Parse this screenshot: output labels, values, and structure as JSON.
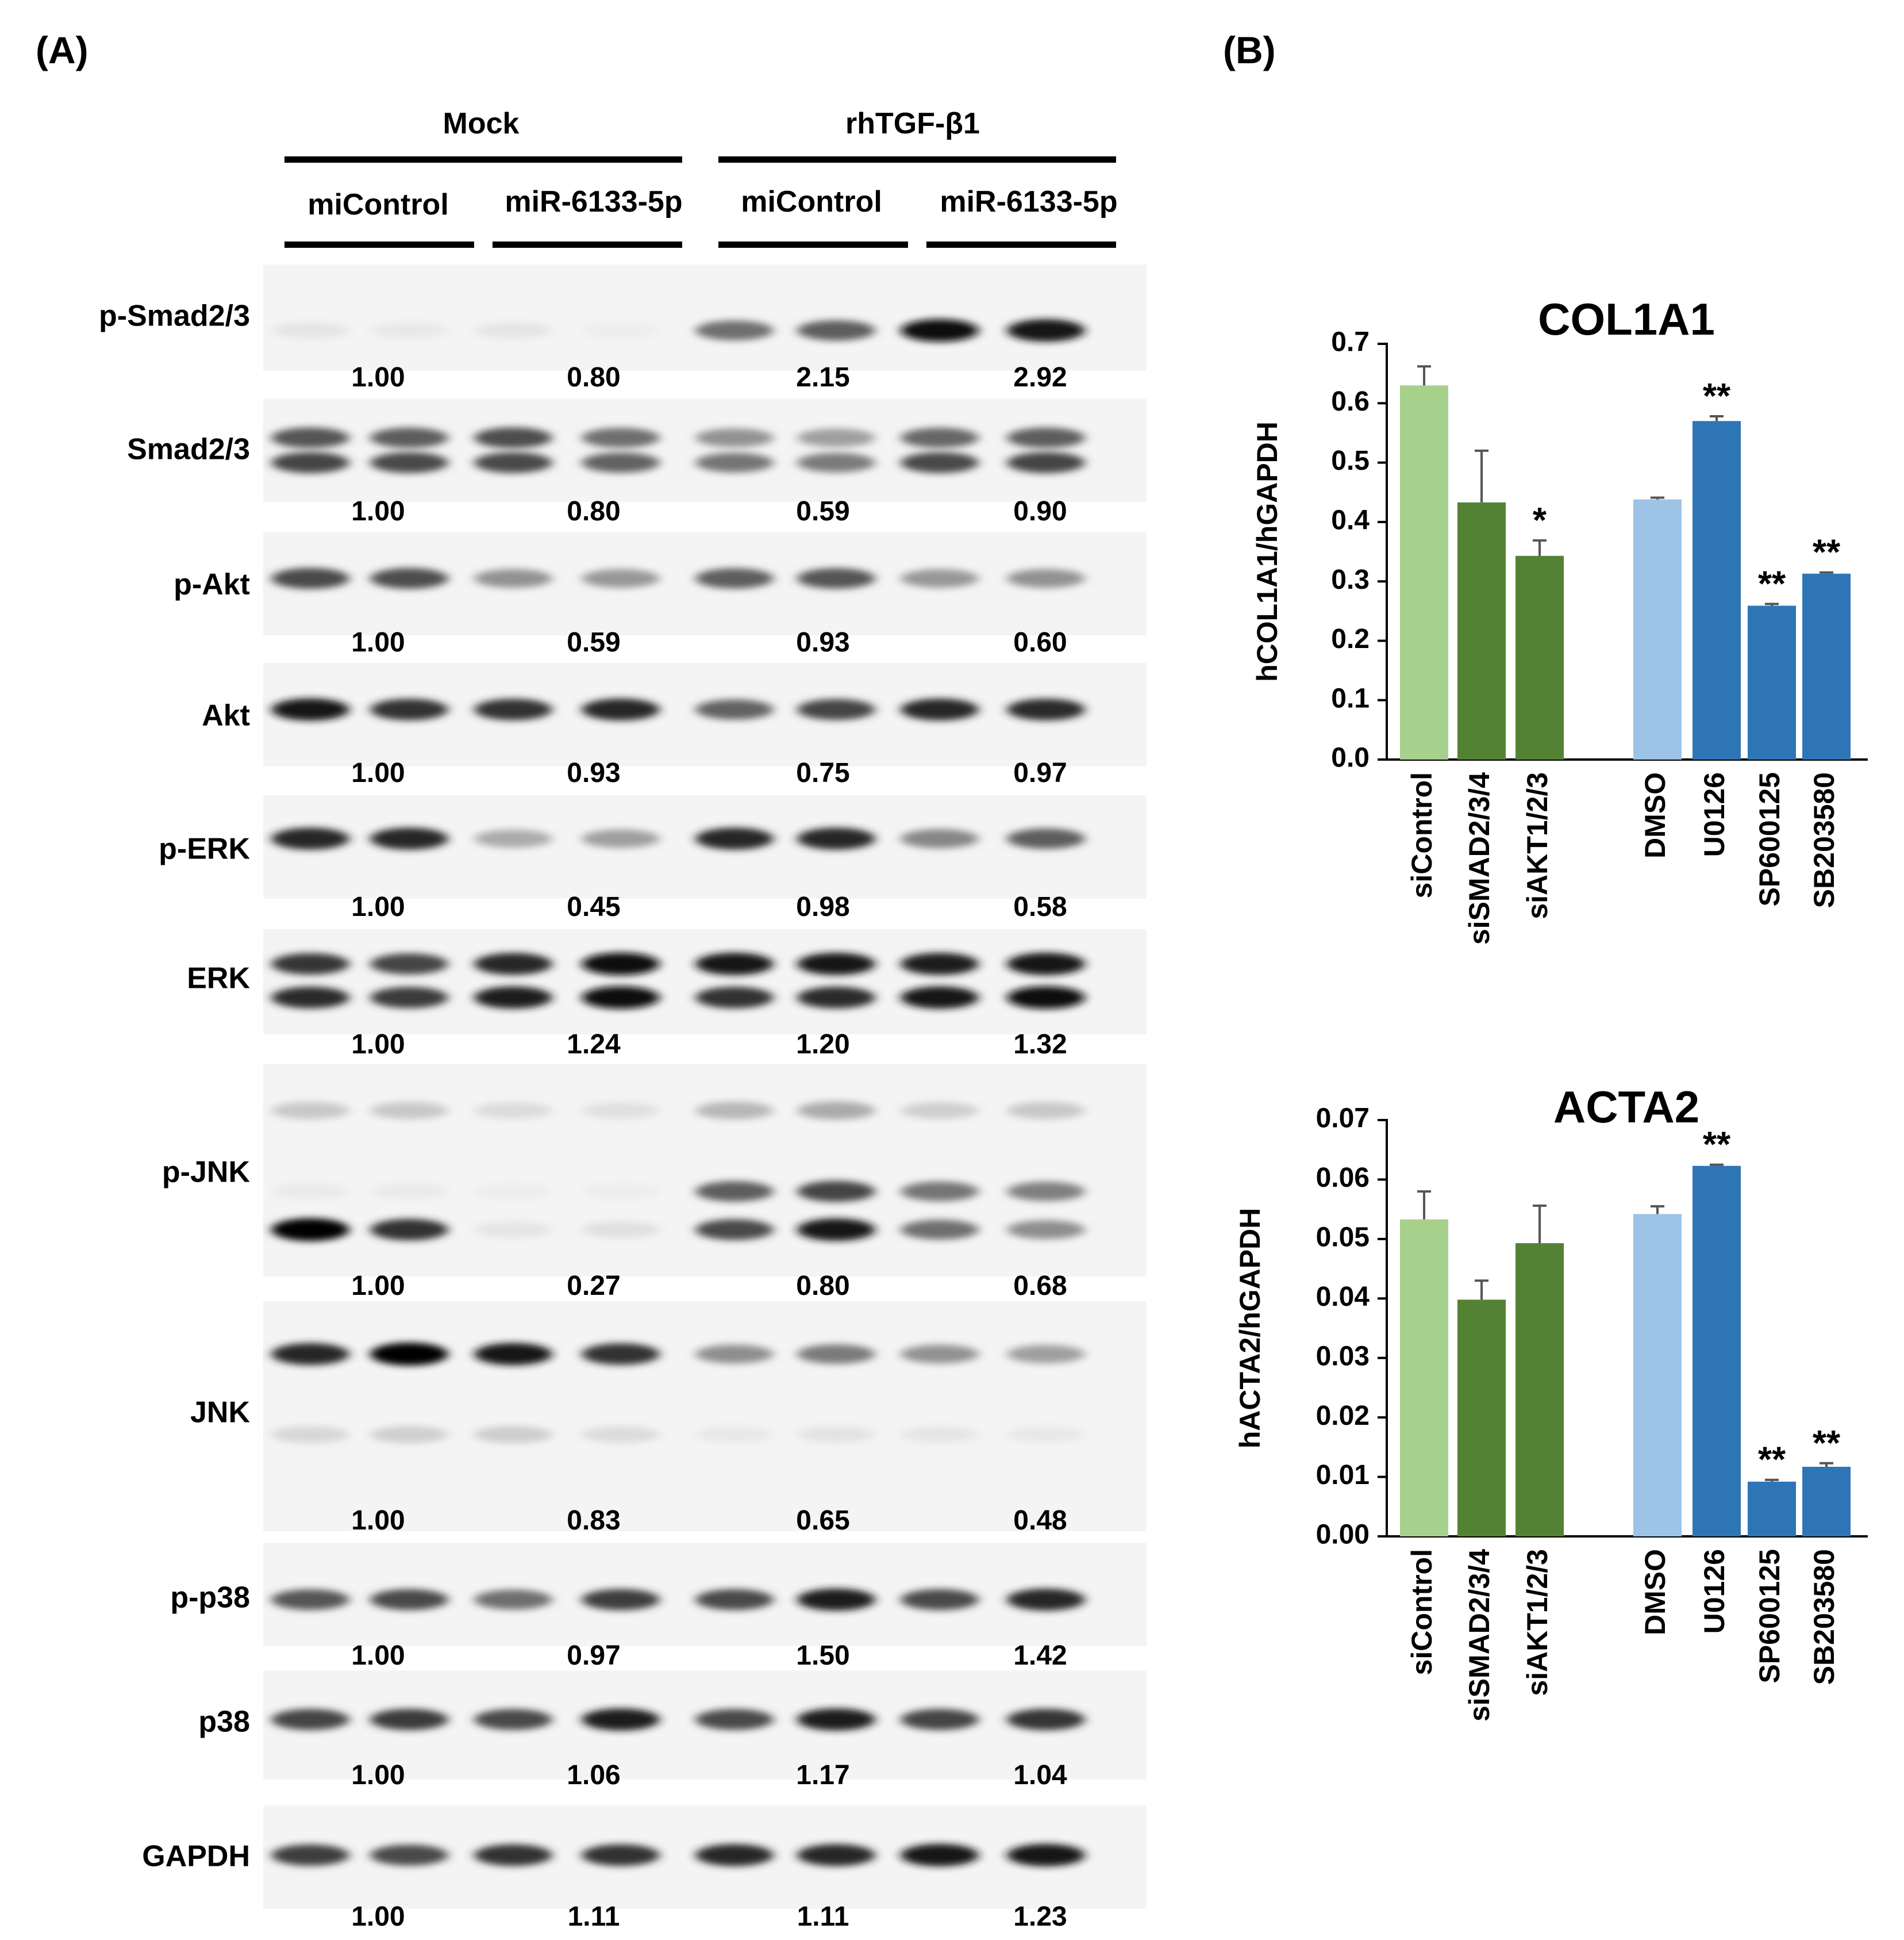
{
  "panel_a": {
    "label": "(A)",
    "group_labels": [
      "Mock",
      "rhTGF-β1"
    ],
    "lane_labels": [
      "miControl",
      "miR-6133-5p",
      "miControl",
      "miR-6133-5p"
    ],
    "blots": [
      {
        "name": "p-Smad2/3",
        "values": [
          "1.00",
          "0.80",
          "2.15",
          "2.92"
        ],
        "bands": [
          [
            0.06,
            0.05,
            0.06,
            0.03,
            0.55,
            0.62,
            0.95,
            0.92
          ]
        ]
      },
      {
        "name": "Smad2/3",
        "values": [
          "1.00",
          "0.80",
          "0.59",
          "0.90"
        ],
        "bands": [
          [
            0.65,
            0.62,
            0.68,
            0.55,
            0.4,
            0.35,
            0.58,
            0.62
          ],
          [
            0.72,
            0.7,
            0.7,
            0.6,
            0.52,
            0.5,
            0.7,
            0.72
          ]
        ]
      },
      {
        "name": "p-Akt",
        "values": [
          "1.00",
          "0.59",
          "0.93",
          "0.60"
        ],
        "bands": [
          [
            0.7,
            0.68,
            0.4,
            0.38,
            0.62,
            0.65,
            0.38,
            0.4
          ]
        ]
      },
      {
        "name": "Akt",
        "values": [
          "1.00",
          "0.93",
          "0.75",
          "0.97"
        ],
        "bands": [
          [
            0.9,
            0.8,
            0.8,
            0.85,
            0.6,
            0.72,
            0.85,
            0.82
          ]
        ]
      },
      {
        "name": "p-ERK",
        "values": [
          "1.00",
          "0.45",
          "0.98",
          "0.58"
        ],
        "bands": [
          [
            0.85,
            0.85,
            0.3,
            0.35,
            0.85,
            0.85,
            0.45,
            0.62
          ]
        ]
      },
      {
        "name": "ERK",
        "values": [
          "1.00",
          "1.24",
          "1.20",
          "1.32"
        ],
        "bands": [
          [
            0.78,
            0.72,
            0.85,
            0.95,
            0.92,
            0.9,
            0.88,
            0.92
          ],
          [
            0.82,
            0.76,
            0.88,
            0.95,
            0.8,
            0.82,
            0.9,
            0.95
          ]
        ]
      },
      {
        "name": "p-JNK",
        "values": [
          "1.00",
          "0.27",
          "0.80",
          "0.68"
        ],
        "bands": [
          [
            0.18,
            0.18,
            0.1,
            0.08,
            0.25,
            0.3,
            0.15,
            0.18
          ],
          [
            0.04,
            0.04,
            0.03,
            0.03,
            0.62,
            0.72,
            0.52,
            0.48
          ],
          [
            0.98,
            0.8,
            0.06,
            0.08,
            0.7,
            0.92,
            0.55,
            0.42
          ]
        ]
      },
      {
        "name": "JNK",
        "values": [
          "1.00",
          "0.83",
          "0.65",
          "0.48"
        ],
        "bands": [
          [
            0.85,
            1.0,
            0.9,
            0.8,
            0.42,
            0.5,
            0.4,
            0.35
          ],
          [
            0.12,
            0.15,
            0.16,
            0.1,
            0.05,
            0.07,
            0.06,
            0.05
          ]
        ]
      },
      {
        "name": "p-p38",
        "values": [
          "1.00",
          "0.97",
          "1.50",
          "1.42"
        ],
        "bands": [
          [
            0.65,
            0.7,
            0.55,
            0.75,
            0.7,
            0.88,
            0.7,
            0.85
          ]
        ]
      },
      {
        "name": "p38",
        "values": [
          "1.00",
          "1.06",
          "1.17",
          "1.04"
        ],
        "bands": [
          [
            0.72,
            0.76,
            0.7,
            0.88,
            0.7,
            0.88,
            0.72,
            0.78
          ]
        ]
      },
      {
        "name": "GAPDH",
        "values": [
          "1.00",
          "1.11",
          "1.11",
          "1.23"
        ],
        "bands": [
          [
            0.75,
            0.7,
            0.8,
            0.8,
            0.85,
            0.85,
            0.92,
            0.92
          ]
        ]
      }
    ]
  },
  "panel_b": {
    "label": "(B)"
  },
  "colors": {
    "light_green": "#a8d08d",
    "dark_green": "#548235",
    "light_blue": "#9dc3e6",
    "dark_blue": "#2e75b6"
  },
  "chart_data": [
    {
      "type": "bar",
      "title": "COL1A1",
      "ylabel": "hCOL1A1/hGAPDH",
      "xlabel": "",
      "ylim": [
        0,
        0.7
      ],
      "yticks": [
        "0.0",
        "0.1",
        "0.2",
        "0.3",
        "0.4",
        "0.5",
        "0.6",
        "0.7"
      ],
      "categories": [
        "siControl",
        "siSMAD2/3/4",
        "siAKT1/2/3",
        "DMSO",
        "U0126",
        "SP600125",
        "SB203580"
      ],
      "values": [
        0.63,
        0.433,
        0.343,
        0.438,
        0.57,
        0.259,
        0.313
      ],
      "errors": [
        0.032,
        0.087,
        0.026,
        0.003,
        0.008,
        0.003,
        0.002
      ],
      "significance": [
        "",
        "",
        "*",
        "",
        "**",
        "**",
        "**"
      ],
      "bar_colors": [
        "#a8d08d",
        "#548235",
        "#548235",
        "#9dc3e6",
        "#2e75b6",
        "#2e75b6",
        "#2e75b6"
      ]
    },
    {
      "type": "bar",
      "title": "ACTA2",
      "ylabel": "hACTA2/hGAPDH",
      "xlabel": "",
      "ylim": [
        0,
        0.07
      ],
      "yticks": [
        "0.00",
        "0.01",
        "0.02",
        "0.03",
        "0.04",
        "0.05",
        "0.06",
        "0.07"
      ],
      "categories": [
        "siControl",
        "siSMAD2/3/4",
        "siAKT1/2/3",
        "DMSO",
        "U0126",
        "SP600125",
        "SB203580"
      ],
      "values": [
        0.0533,
        0.0398,
        0.0493,
        0.0542,
        0.0623,
        0.0092,
        0.0117
      ],
      "errors": [
        0.0047,
        0.0032,
        0.0063,
        0.0013,
        0.0002,
        0.0003,
        0.0006
      ],
      "significance": [
        "",
        "",
        "",
        "",
        "**",
        "**",
        "**"
      ],
      "bar_colors": [
        "#a8d08d",
        "#548235",
        "#548235",
        "#9dc3e6",
        "#2e75b6",
        "#2e75b6",
        "#2e75b6"
      ]
    }
  ]
}
